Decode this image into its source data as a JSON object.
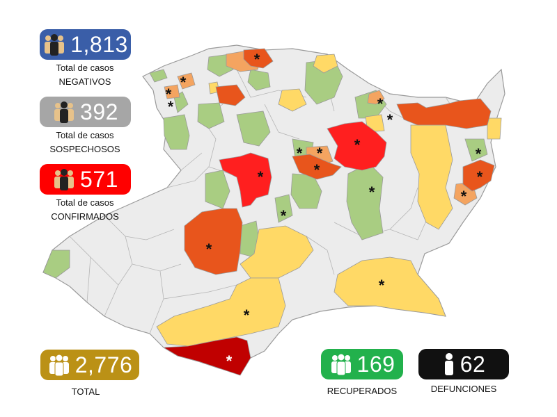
{
  "stats": {
    "negativos": {
      "value": "1,813",
      "label1": "Total de casos",
      "label2": "NEGATIVOS",
      "color": "#3a5ea8"
    },
    "sospechosos": {
      "value": "392",
      "label1": "Total de casos",
      "label2": "SOSPECHOSOS",
      "color": "#a6a6a6"
    },
    "confirmados": {
      "value": "571",
      "label1": "Total de casos",
      "label2": "CONFIRMADOS",
      "color": "#ff0000"
    },
    "total": {
      "value": "2,776",
      "label": "TOTAL",
      "color": "#bb9116"
    },
    "recuperados": {
      "value": "169",
      "label": "RECUPERADOS",
      "color": "#22b14c"
    },
    "defunciones": {
      "value": "62",
      "label": "DEFUNCIONES",
      "color": "#111111"
    }
  },
  "map_legend_colors": {
    "no_cases": "#ececec",
    "negative_only": "#a9cd82",
    "low": "#ffd966",
    "medium": "#f4a460",
    "high": "#e8551c",
    "very_high": "#ff1f1f",
    "highest": "#c00000"
  },
  "marker_symbol": "*",
  "icons": {
    "people": "people-icon",
    "person": "person-icon"
  }
}
